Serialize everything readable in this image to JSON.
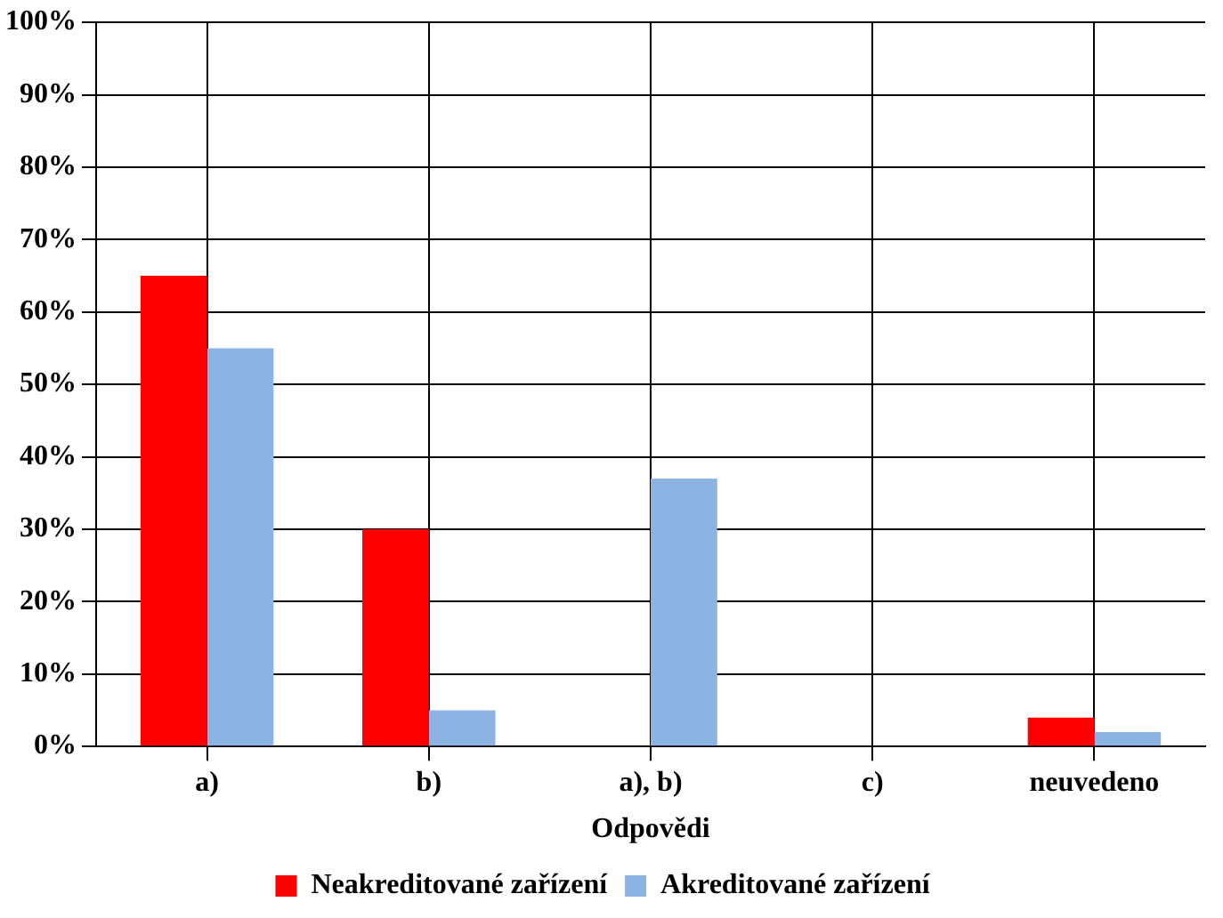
{
  "chart_data": {
    "type": "bar",
    "xlabel": "Odpovědi",
    "categories": [
      "a)",
      "b)",
      "a), b)",
      "c)",
      "neuvedeno"
    ],
    "series": [
      {
        "name": "Neakreditované zařízení",
        "color": "#ff0000",
        "values": [
          65,
          30,
          0,
          0,
          4
        ]
      },
      {
        "name": "Akreditované zařízení",
        "color": "#8db3e2",
        "values": [
          55,
          5,
          37,
          0,
          2
        ]
      }
    ],
    "ylim": [
      0,
      100
    ],
    "yticks": [
      {
        "value": 0,
        "label": "0%"
      },
      {
        "value": 10,
        "label": "10%"
      },
      {
        "value": 20,
        "label": "20%"
      },
      {
        "value": 30,
        "label": "30%"
      },
      {
        "value": 40,
        "label": "40%"
      },
      {
        "value": 50,
        "label": "50%"
      },
      {
        "value": 60,
        "label": "60%"
      },
      {
        "value": 70,
        "label": "70%"
      },
      {
        "value": 80,
        "label": "80%"
      },
      {
        "value": 90,
        "label": "90%"
      },
      {
        "value": 100,
        "label": "100%"
      }
    ],
    "grid": true,
    "legend": "bottom"
  }
}
